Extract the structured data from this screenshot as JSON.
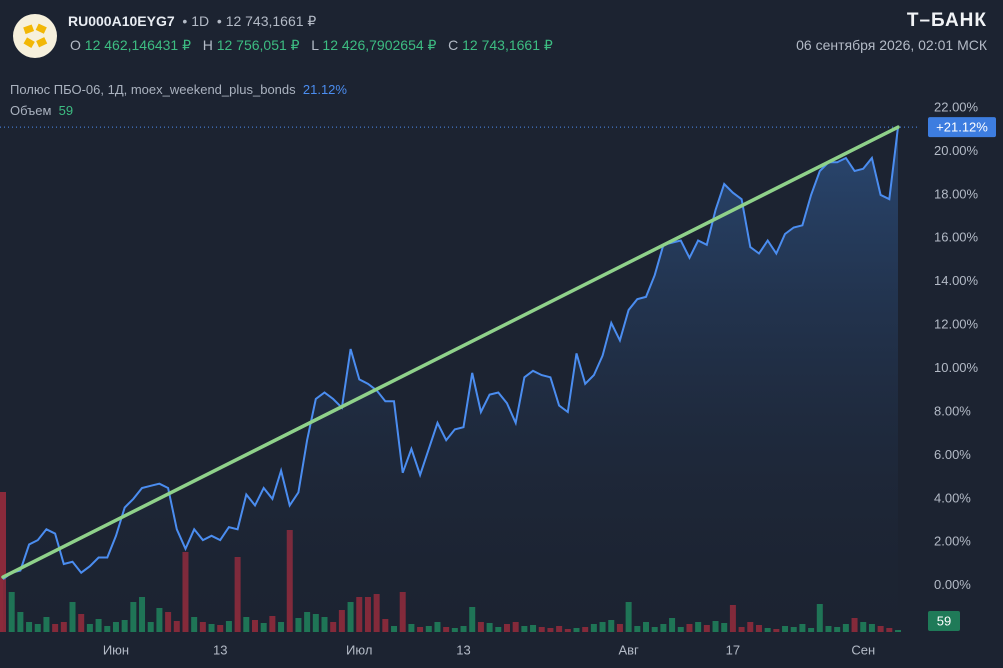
{
  "header": {
    "ticker": "RU000A10EYG7",
    "interval": "1D",
    "price": "12 743,1661 ₽",
    "ohlc": [
      {
        "label": "O",
        "value": "12 462,146431 ₽"
      },
      {
        "label": "H",
        "value": "12 756,051 ₽"
      },
      {
        "label": "L",
        "value": "12 426,7902654 ₽"
      },
      {
        "label": "C",
        "value": "12 743,1661 ₽"
      }
    ],
    "brand": "Т–БАНК",
    "datetime": "06 сентября 2026, 02:01 МСК"
  },
  "chart_data": {
    "type": "area_line",
    "categories": [
      null,
      null,
      null,
      null,
      null,
      null,
      null,
      null,
      null,
      null,
      null,
      null,
      null,
      "Июн",
      null,
      null,
      null,
      null,
      null,
      null,
      null,
      null,
      null,
      null,
      null,
      "13",
      null,
      null,
      null,
      null,
      null,
      null,
      null,
      null,
      null,
      null,
      null,
      null,
      null,
      null,
      null,
      "Июл",
      null,
      null,
      null,
      null,
      null,
      null,
      null,
      null,
      null,
      null,
      null,
      "13",
      null,
      null,
      null,
      null,
      null,
      null,
      null,
      null,
      null,
      null,
      null,
      null,
      null,
      null,
      null,
      null,
      null,
      null,
      "Авг",
      null,
      null,
      null,
      null,
      null,
      null,
      null,
      null,
      null,
      null,
      null,
      "17",
      null,
      null,
      null,
      null,
      null,
      null,
      null,
      null,
      null,
      null,
      null,
      null,
      null,
      null,
      "Сен",
      null,
      null,
      null,
      null
    ],
    "series": [
      {
        "name": "Полюс ПБО-06, 1Д, moex_weekend_plus_bonds",
        "color": "#4b8df0",
        "values": [
          0.3,
          0.6,
          0.7,
          1.9,
          2.1,
          2.6,
          2.4,
          1.0,
          1.1,
          0.6,
          0.9,
          1.3,
          1.3,
          2.3,
          3.6,
          4.0,
          4.5,
          4.6,
          4.7,
          4.5,
          2.6,
          1.7,
          2.6,
          2.1,
          2.3,
          2.1,
          2.7,
          2.6,
          4.2,
          3.7,
          4.5,
          4.0,
          5.3,
          3.7,
          4.3,
          6.7,
          8.6,
          8.9,
          8.6,
          8.2,
          10.9,
          9.5,
          9.3,
          9.0,
          8.5,
          8.5,
          5.2,
          6.3,
          5.1,
          6.3,
          7.5,
          6.7,
          7.2,
          7.3,
          9.8,
          8.0,
          8.8,
          8.9,
          8.4,
          7.5,
          9.6,
          9.9,
          9.7,
          9.6,
          8.3,
          8.0,
          10.7,
          9.3,
          9.7,
          10.6,
          12.1,
          11.3,
          12.7,
          13.2,
          13.3,
          14.3,
          15.7,
          15.8,
          15.9,
          15.1,
          15.9,
          15.7,
          17.3,
          18.5,
          18.1,
          17.8,
          15.6,
          15.3,
          15.9,
          15.3,
          16.2,
          16.5,
          16.6,
          18.0,
          19.1,
          19.5,
          19.5,
          19.7,
          19.1,
          19.2,
          19.7,
          18.0,
          17.8,
          21.12
        ],
        "last_value_label": "21.12%",
        "price_tag": "+21.12%"
      }
    ],
    "volume": {
      "name": "Объем",
      "up_color": "#1f7a58",
      "down_color": "#8a2a3b",
      "values": [
        4200,
        1200,
        600,
        300,
        240,
        450,
        240,
        300,
        900,
        540,
        240,
        390,
        180,
        300,
        360,
        900,
        1050,
        300,
        720,
        600,
        330,
        2400,
        450,
        300,
        240,
        210,
        330,
        2250,
        450,
        360,
        270,
        480,
        300,
        3060,
        420,
        600,
        540,
        450,
        300,
        660,
        900,
        1050,
        1050,
        1140,
        390,
        180,
        1200,
        240,
        150,
        180,
        300,
        150,
        120,
        180,
        750,
        300,
        270,
        150,
        240,
        300,
        180,
        210,
        150,
        120,
        180,
        90,
        120,
        150,
        240,
        300,
        360,
        240,
        900,
        180,
        300,
        150,
        240,
        420,
        150,
        240,
        300,
        210,
        330,
        270,
        810,
        150,
        300,
        210,
        120,
        90,
        180,
        150,
        240,
        120,
        840,
        180,
        150,
        240,
        420,
        300,
        240,
        180,
        120,
        59
      ]
    },
    "trend_line": {
      "start": 0.4,
      "end": 21.12,
      "color": "#8fd18a"
    },
    "ylim": [
      -2.5,
      22.6
    ],
    "yticks": [
      {
        "value": 0,
        "label": "0.00%"
      },
      {
        "value": 2,
        "label": "2.00%"
      },
      {
        "value": 4,
        "label": "4.00%"
      },
      {
        "value": 6,
        "label": "6.00%"
      },
      {
        "value": 8,
        "label": "8.00%"
      },
      {
        "value": 10,
        "label": "10.00%"
      },
      {
        "value": 12,
        "label": "12.00%"
      },
      {
        "value": 14,
        "label": "14.00%"
      },
      {
        "value": 16,
        "label": "16.00%"
      },
      {
        "value": 18,
        "label": "18.00%"
      },
      {
        "value": 20,
        "label": "20.00%"
      },
      {
        "value": 22,
        "label": "22.00%"
      }
    ],
    "grid": false
  }
}
